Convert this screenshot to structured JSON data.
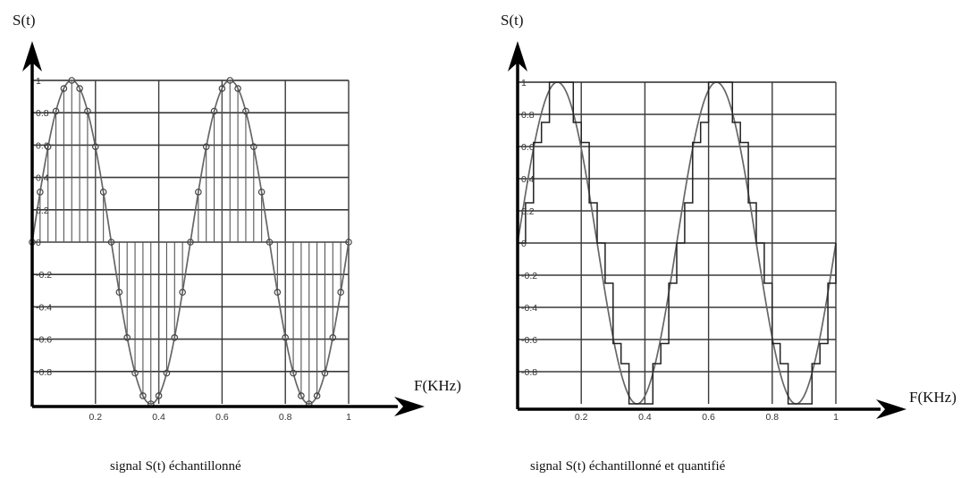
{
  "chart_data": [
    {
      "type": "line",
      "variant": "sampled-stem",
      "caption": "signal S(t) échantillonné",
      "ylabel": "S(t)",
      "xlabel": "F(KHz)",
      "xlim": [
        0,
        1
      ],
      "ylim": [
        -1,
        1
      ],
      "grid": true,
      "x_ticks": [
        0.2,
        0.4,
        0.6,
        0.8,
        1
      ],
      "x_tick_labels": [
        "0.2",
        "0.4",
        "0.6",
        "0.8",
        "1"
      ],
      "y_ticks": [
        1,
        0.8,
        0.6,
        0.4,
        0.2,
        0,
        -0.2,
        -0.4,
        -0.6,
        -0.8
      ],
      "y_tick_labels": [
        "1",
        "0.8",
        "0.6",
        "0.4",
        "0.2",
        "0",
        "-0.2",
        "-0.4",
        "-0.6",
        "-0.8"
      ],
      "signal": {
        "function": "sine",
        "amplitude": 1,
        "frequency": 2,
        "phase_deg": 0
      },
      "sample_step": 0.025,
      "x": [
        0,
        0.025,
        0.05,
        0.075,
        0.1,
        0.125,
        0.15,
        0.175,
        0.2,
        0.225,
        0.25,
        0.275,
        0.3,
        0.325,
        0.35,
        0.375,
        0.4,
        0.425,
        0.45,
        0.475,
        0.5,
        0.525,
        0.55,
        0.575,
        0.6,
        0.625,
        0.65,
        0.675,
        0.7,
        0.725,
        0.75,
        0.775,
        0.8,
        0.825,
        0.85,
        0.875,
        0.9,
        0.925,
        0.95,
        0.975,
        1
      ],
      "y": [
        0,
        0.31,
        0.59,
        0.81,
        0.95,
        1,
        0.95,
        0.81,
        0.59,
        0.31,
        0,
        -0.31,
        -0.59,
        -0.81,
        -0.95,
        -1,
        -0.95,
        -0.81,
        -0.59,
        -0.31,
        0,
        0.31,
        0.59,
        0.81,
        0.95,
        1,
        0.95,
        0.81,
        0.59,
        0.31,
        0,
        -0.31,
        -0.59,
        -0.81,
        -0.95,
        -1,
        -0.95,
        -0.81,
        -0.59,
        -0.31,
        0
      ]
    },
    {
      "type": "line",
      "variant": "sampled-quantized-step",
      "caption": "signal S(t) échantillonné et quantifié",
      "ylabel": "S(t)",
      "xlabel": "F(KHz)",
      "xlim": [
        0,
        1
      ],
      "ylim": [
        -1,
        1
      ],
      "grid": true,
      "x_ticks": [
        0.2,
        0.4,
        0.6,
        0.8,
        1
      ],
      "x_tick_labels": [
        "0.2",
        "0.4",
        "0.6",
        "0.8",
        "1"
      ],
      "y_ticks": [
        1,
        0.8,
        0.6,
        0.4,
        0.2,
        0,
        -0.2,
        -0.4,
        -0.6,
        -0.8
      ],
      "y_tick_labels": [
        "1",
        "0.8",
        "0.6",
        "0.4",
        "0.2",
        "0",
        "-0.2",
        "-0.4",
        "-0.6",
        "-0.8"
      ],
      "signal": {
        "function": "sine",
        "amplitude": 1,
        "frequency": 2,
        "phase_deg": 0
      },
      "quantization_step": 0.125,
      "sample_step": 0.025,
      "x": [
        0,
        0.025,
        0.05,
        0.075,
        0.1,
        0.125,
        0.15,
        0.175,
        0.2,
        0.225,
        0.25,
        0.275,
        0.3,
        0.325,
        0.35,
        0.375,
        0.4,
        0.425,
        0.45,
        0.475,
        0.5,
        0.525,
        0.55,
        0.575,
        0.6,
        0.625,
        0.65,
        0.675,
        0.7,
        0.725,
        0.75,
        0.775,
        0.8,
        0.825,
        0.85,
        0.875,
        0.9,
        0.925,
        0.95,
        0.975,
        1
      ],
      "y_quantized": [
        0,
        0.25,
        0.625,
        0.75,
        1,
        1,
        1,
        0.75,
        0.625,
        0.25,
        0,
        -0.25,
        -0.625,
        -0.75,
        -1,
        -1,
        -1,
        -0.75,
        -0.625,
        -0.25,
        0,
        0.25,
        0.625,
        0.75,
        1,
        1,
        1,
        0.75,
        0.625,
        0.25,
        0,
        -0.25,
        -0.625,
        -0.75,
        -1,
        -1,
        -1,
        -0.75,
        -0.625,
        -0.25,
        0
      ]
    }
  ]
}
